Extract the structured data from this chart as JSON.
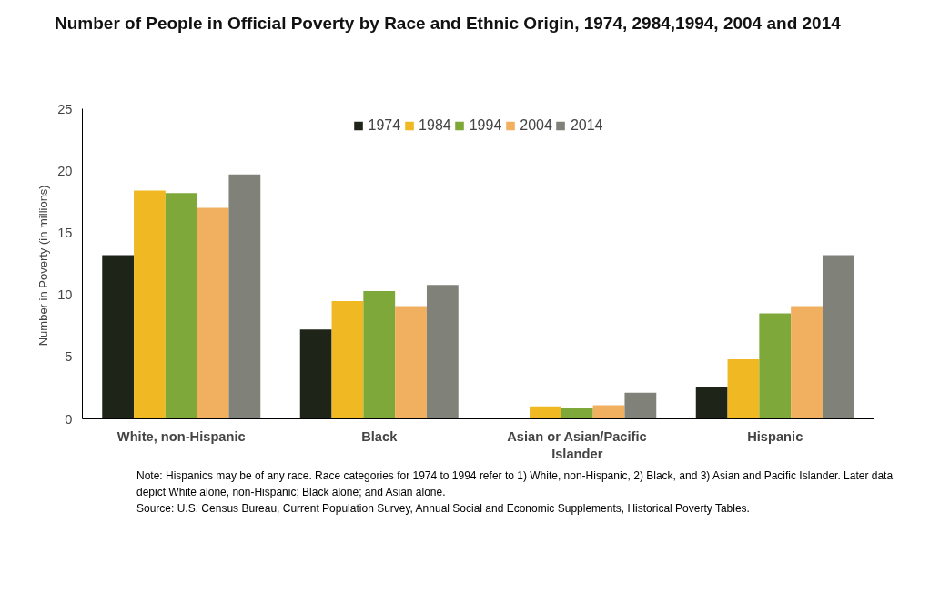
{
  "chart_data": {
    "type": "bar",
    "title": "Number of People in Official Poverty by Race and Ethnic Origin, 1974, 2984,1994, 2004 and 2014",
    "ylabel": "Number in Poverty  (in millions)",
    "categories": [
      "White, non-Hispanic",
      "Black",
      "Asian or Asian/Pacific Islander",
      "Hispanic"
    ],
    "series": [
      {
        "name": "1974",
        "color": "#1f2418",
        "values": [
          13.2,
          7.2,
          null,
          2.6
        ]
      },
      {
        "name": "1984",
        "color": "#f0b923",
        "values": [
          18.4,
          9.5,
          1.0,
          4.8
        ]
      },
      {
        "name": "1994",
        "color": "#7ea93a",
        "values": [
          18.2,
          10.3,
          0.9,
          8.5
        ]
      },
      {
        "name": "2004",
        "color": "#f0b060",
        "values": [
          17.0,
          9.1,
          1.1,
          9.1
        ]
      },
      {
        "name": "2014",
        "color": "#80827a",
        "values": [
          19.7,
          10.8,
          2.1,
          13.2
        ]
      }
    ],
    "ylim": [
      0,
      25
    ],
    "yticks": [
      0,
      5,
      10,
      15,
      20,
      25
    ],
    "grid": false,
    "legend": "top",
    "annotations": [
      "Note: Hispanics may be of any race. Race categories for 1974 to 1994 refer to 1) White, non-Hispanic, 2) Black, and 3) Asian and Pacific Islander. Later data depict White alone, non-Hispanic; Black alone; and Asian alone.",
      "Source: U.S. Census Bureau, Current Population Survey, Annual Social and Economic Supplements, Historical Poverty Tables."
    ]
  }
}
